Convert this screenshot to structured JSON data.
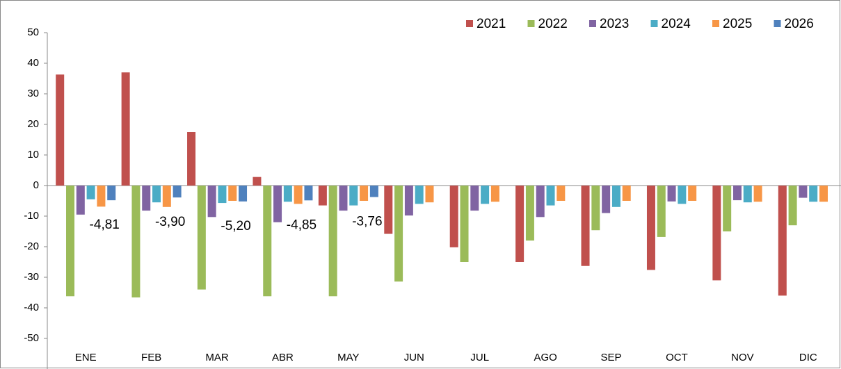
{
  "chart_data": {
    "type": "bar",
    "categories": [
      "ENE",
      "FEB",
      "MAR",
      "ABR",
      "MAY",
      "JUN",
      "JUL",
      "AGO",
      "SEP",
      "OCT",
      "NOV",
      "DIC"
    ],
    "series": [
      {
        "name": "2021",
        "color": "#c0504d",
        "values": [
          36.3,
          37,
          17.5,
          2.8,
          -6.5,
          -15.8,
          -20.2,
          -25,
          -26.3,
          -27.6,
          -31,
          -36
        ]
      },
      {
        "name": "2022",
        "color": "#9bbb59",
        "values": [
          -36.2,
          -36.6,
          -34,
          -36.2,
          -36.2,
          -31.4,
          -25,
          -18,
          -14.6,
          -16.8,
          -15,
          -13
        ]
      },
      {
        "name": "2023",
        "color": "#8064a2",
        "values": [
          -9.5,
          -8.2,
          -10.3,
          -12,
          -8.2,
          -9.8,
          -8.2,
          -10.3,
          -9,
          -5.2,
          -4.8,
          -4
        ]
      },
      {
        "name": "2024",
        "color": "#4bacc6",
        "values": [
          -4.5,
          -5.5,
          -5.7,
          -5.3,
          -6.5,
          -6,
          -6,
          -6.5,
          -7,
          -6,
          -5.5,
          -5.3
        ]
      },
      {
        "name": "2025",
        "color": "#f79646",
        "values": [
          -6.9,
          -7,
          -5,
          -6,
          -5,
          -5.5,
          -5.3,
          -5,
          -5,
          -5,
          -5.3,
          -5.3
        ]
      },
      {
        "name": "2026",
        "color": "#4f81bd",
        "values": [
          -4.81,
          -3.9,
          -5.2,
          -4.85,
          -3.76,
          null,
          null,
          null,
          null,
          null,
          null,
          null
        ],
        "value_labels": [
          "-4,81",
          "-3,90",
          "-5,20",
          "-4,85",
          "-3,76",
          null,
          null,
          null,
          null,
          null,
          null,
          null
        ]
      }
    ],
    "ylim": [
      -50,
      50
    ],
    "yticks": [
      -50,
      -40,
      -30,
      -20,
      -10,
      0,
      10,
      20,
      30,
      40,
      50
    ],
    "legend": "top-right"
  }
}
